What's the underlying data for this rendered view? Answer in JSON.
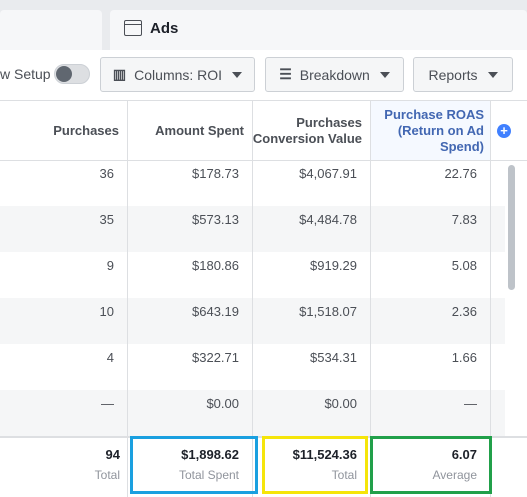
{
  "tab": {
    "title": "Ads"
  },
  "toolbar": {
    "setup": "w Setup",
    "buttons": [
      "Columns: ROI",
      "Breakdown",
      "Reports"
    ]
  },
  "table": {
    "headers": [
      "Purchases",
      "Amount Spent",
      "Purchases Conversion Value",
      "Purchase ROAS (Return on Ad Spend)"
    ],
    "rows": [
      [
        "36",
        "$178.73",
        "$4,067.91",
        "22.76"
      ],
      [
        "35",
        "$573.13",
        "$4,484.78",
        "7.83"
      ],
      [
        "9",
        "$180.86",
        "$919.29",
        "5.08"
      ],
      [
        "10",
        "$643.19",
        "$1,518.07",
        "2.36"
      ],
      [
        "4",
        "$322.71",
        "$534.31",
        "1.66"
      ],
      [
        "—",
        "$0.00",
        "$0.00",
        "—"
      ]
    ],
    "totals": [
      {
        "value": "94",
        "label": "Total"
      },
      {
        "value": "$1,898.62",
        "label": "Total Spent"
      },
      {
        "value": "$11,524.36",
        "label": "Total"
      },
      {
        "value": "6.07",
        "label": "Average"
      }
    ]
  }
}
